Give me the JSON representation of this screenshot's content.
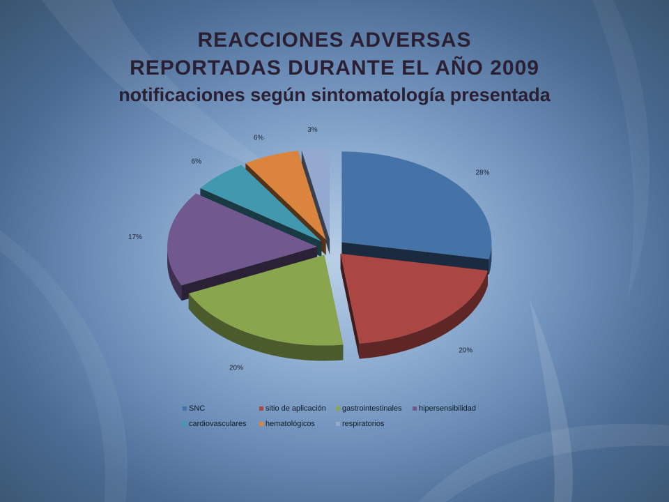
{
  "title": {
    "line1": "REACCIONES ADVERSAS",
    "line2": "REPORTADAS DURANTE EL AÑO 2009",
    "line3": "notificaciones según sintomatología presentada"
  },
  "chart_data": {
    "type": "pie",
    "title": "REACCIONES ADVERSAS REPORTADAS DURANTE EL AÑO 2009 notificaciones según sintomatología presentada",
    "categories": [
      "SNC",
      "sitio de aplicación",
      "gastrointestinales",
      "hipersensibilidad",
      "cardiovasculares",
      "hematológicos",
      "respiratorios"
    ],
    "values": [
      28,
      20,
      20,
      17,
      6,
      6,
      3
    ],
    "labels": [
      "28%",
      "20%",
      "20%",
      "17%",
      "6%",
      "6%",
      "3%"
    ],
    "colors": [
      "#4572a7",
      "#aa4643",
      "#89a54e",
      "#71588f",
      "#4198af",
      "#db843d",
      "#93a9cf"
    ],
    "exploded": true,
    "style": "3d",
    "legend_position": "bottom"
  }
}
